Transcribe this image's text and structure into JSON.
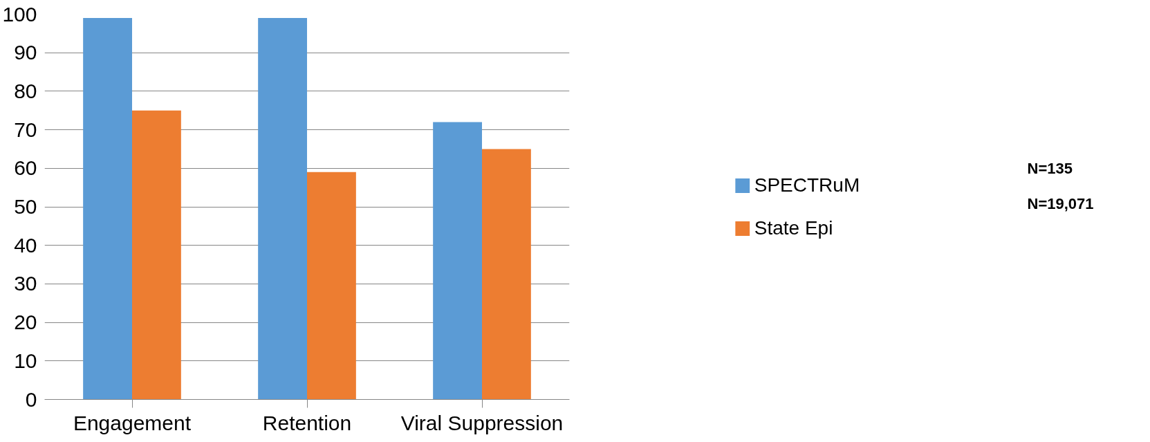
{
  "chart_data": {
    "type": "bar",
    "categories": [
      "Engagement",
      "Retention",
      "Viral Suppression"
    ],
    "series": [
      {
        "name": "SPECTRuM",
        "color": "#5b9bd5",
        "values": [
          99,
          99,
          72
        ]
      },
      {
        "name": "State Epi",
        "color": "#ed7d31",
        "values": [
          75,
          59,
          65
        ]
      }
    ],
    "ylim": [
      0,
      100
    ],
    "yticks": [
      0,
      10,
      20,
      30,
      40,
      50,
      60,
      70,
      80,
      90,
      100
    ],
    "grid": "y",
    "legend": "right",
    "annotations": [
      "N=135",
      "N=19,071"
    ]
  }
}
